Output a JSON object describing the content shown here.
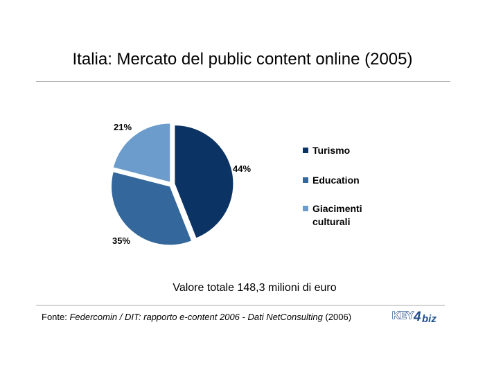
{
  "title": "Italia: Mercato del public content online (2005)",
  "note": "Valore totale 148,3 milioni di euro",
  "source": {
    "prefix": "Fonte: ",
    "italic": "Federcomin / DIT: rapporto e-content 2006 - Dati NetConsulting",
    "suffix": " (2006)"
  },
  "logo": {
    "text_key": "KEY",
    "text_num": "4",
    "text_biz": "biz",
    "icon": "key4biz-logo"
  },
  "chart_data": {
    "type": "pie",
    "title": "Italia: Mercato del public content online (2005)",
    "series": [
      {
        "name": "Turismo",
        "value": 44,
        "label": "44%",
        "color": "#0b3364"
      },
      {
        "name": "Education",
        "value": 35,
        "label": "35%",
        "color": "#34679b"
      },
      {
        "name": "Giacimenti culturali",
        "value": 21,
        "label": "21%",
        "color": "#6b9ccb"
      }
    ],
    "legend": {
      "placement": "right",
      "entries": [
        "Turismo",
        "Education",
        "Giacimenti\nculturali"
      ]
    }
  }
}
